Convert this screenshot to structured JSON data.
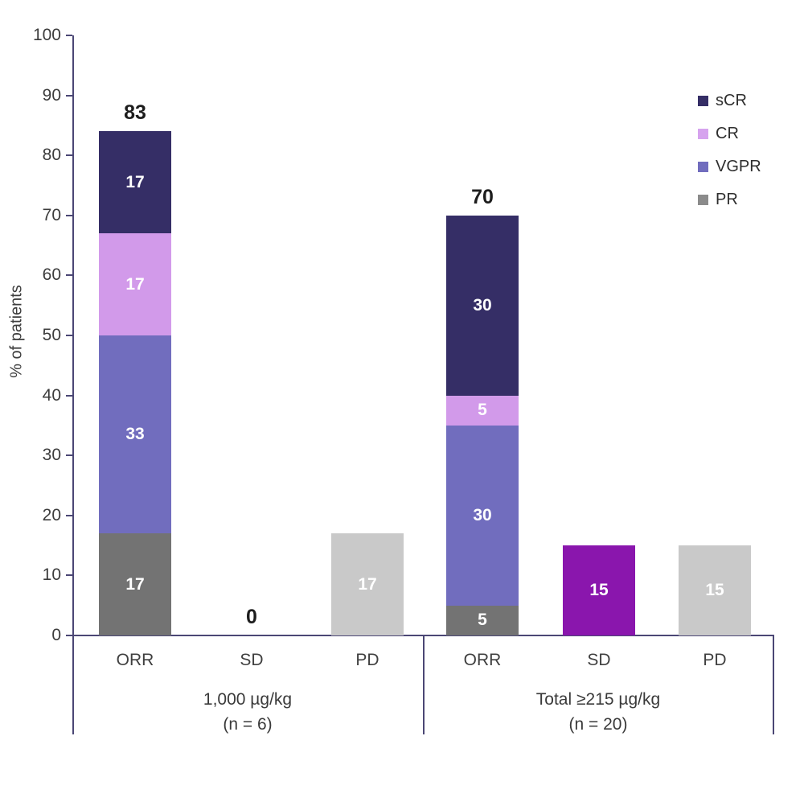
{
  "chart_data": {
    "type": "bar",
    "stacked": true,
    "title": "",
    "xlabel": "",
    "ylabel": "% of patients",
    "ylim": [
      0,
      100
    ],
    "yticks": [
      0,
      10,
      20,
      30,
      40,
      50,
      60,
      70,
      80,
      90,
      100
    ],
    "grid": false,
    "legend_position": "top-right",
    "legend": [
      {
        "label": "sCR",
        "color": "#352e66"
      },
      {
        "label": "CR",
        "color": "#d6a3ee"
      },
      {
        "label": "VGPR",
        "color": "#716dbe"
      },
      {
        "label": "PR",
        "color": "#8b8b8b"
      }
    ],
    "groups": [
      {
        "label": "1,000 µg/kg",
        "sublabel": "(n = 6)",
        "bars": [
          {
            "category": "ORR",
            "total_label": "83",
            "segments": [
              {
                "name": "PR",
                "value": 17,
                "color": "#737373"
              },
              {
                "name": "VGPR",
                "value": 33,
                "color": "#716dbe"
              },
              {
                "name": "CR",
                "value": 17,
                "color": "#d29aea"
              },
              {
                "name": "sCR",
                "value": 17,
                "color": "#352e66"
              }
            ]
          },
          {
            "category": "SD",
            "total_label": "0",
            "segments": []
          },
          {
            "category": "PD",
            "total_label": "",
            "segments": [
              {
                "name": "PD",
                "value": 17,
                "color": "#c9c9c9"
              }
            ]
          }
        ]
      },
      {
        "label": "Total ≥215 µg/kg",
        "sublabel": "(n = 20)",
        "bars": [
          {
            "category": "ORR",
            "total_label": "70",
            "segments": [
              {
                "name": "PR",
                "value": 5,
                "color": "#737373"
              },
              {
                "name": "VGPR",
                "value": 30,
                "color": "#716dbe"
              },
              {
                "name": "CR",
                "value": 5,
                "color": "#d29aea"
              },
              {
                "name": "sCR",
                "value": 30,
                "color": "#352e66"
              }
            ]
          },
          {
            "category": "SD",
            "total_label": "",
            "segments": [
              {
                "name": "SD",
                "value": 15,
                "color": "#8a16ad"
              }
            ]
          },
          {
            "category": "PD",
            "total_label": "",
            "segments": [
              {
                "name": "PD",
                "value": 15,
                "color": "#c9c9c9"
              }
            ]
          }
        ]
      }
    ],
    "colors": {
      "axis": "#4b4775",
      "tick_text": "#3c3c3c",
      "total_text": "#1d1d1d",
      "segment_text": "#ffffff"
    }
  }
}
